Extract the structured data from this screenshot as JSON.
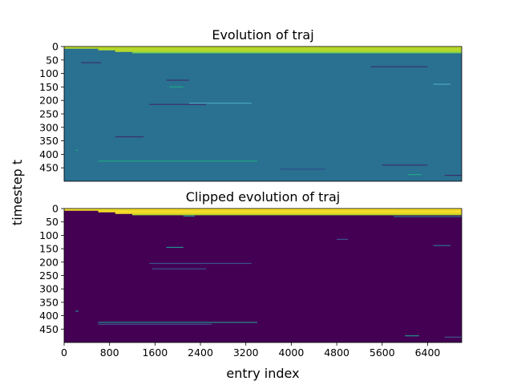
{
  "figure": {
    "ylabel": "timestep t",
    "xlabel": "entry index"
  },
  "chart_data": [
    {
      "type": "heatmap",
      "title": "Evolution of traj",
      "xlim": [
        0,
        7000
      ],
      "ylim": [
        0,
        500
      ],
      "y_inverted": true,
      "yticks": [
        0,
        50,
        100,
        150,
        200,
        250,
        300,
        350,
        400,
        450
      ],
      "ytick_labels": [
        "0",
        "50",
        "100",
        "150",
        "200",
        "250",
        "300",
        "350",
        "400",
        "450"
      ],
      "show_xticks": false,
      "colormap": "viridis",
      "colors": {
        "background": "#2a7090",
        "top_band": "#bddf26",
        "top_band_edge": "#7ad151",
        "streak_dark": "#3b2f6e",
        "streak_teal": "#21a585",
        "streak_light": "#4aa8bd",
        "streak_blue": "#2f4f8e"
      },
      "bands": [
        {
          "x0": 0,
          "x1": 7000,
          "y0": 0,
          "y1": 8,
          "color": "top_band"
        },
        {
          "x0": 600,
          "x1": 7000,
          "y0": 8,
          "y1": 14,
          "color": "top_band"
        },
        {
          "x0": 900,
          "x1": 7000,
          "y0": 14,
          "y1": 20,
          "color": "top_band"
        },
        {
          "x0": 1200,
          "x1": 7000,
          "y0": 20,
          "y1": 25,
          "color": "top_band_edge"
        }
      ],
      "streaks": [
        {
          "x0": 300,
          "x1": 650,
          "y": 60,
          "color": "streak_dark"
        },
        {
          "x0": 5400,
          "x1": 6400,
          "y": 75,
          "color": "streak_dark"
        },
        {
          "x0": 1800,
          "x1": 2200,
          "y": 125,
          "color": "streak_dark"
        },
        {
          "x0": 1850,
          "x1": 2100,
          "y": 150,
          "color": "streak_teal"
        },
        {
          "x0": 6500,
          "x1": 6800,
          "y": 140,
          "color": "streak_light"
        },
        {
          "x0": 1500,
          "x1": 2500,
          "y": 215,
          "color": "streak_dark"
        },
        {
          "x0": 2200,
          "x1": 3300,
          "y": 210,
          "color": "streak_light"
        },
        {
          "x0": 900,
          "x1": 1400,
          "y": 335,
          "color": "streak_dark"
        },
        {
          "x0": 200,
          "x1": 250,
          "y": 385,
          "color": "streak_teal"
        },
        {
          "x0": 600,
          "x1": 3400,
          "y": 425,
          "color": "streak_teal"
        },
        {
          "x0": 3800,
          "x1": 4600,
          "y": 455,
          "color": "streak_blue"
        },
        {
          "x0": 5600,
          "x1": 6400,
          "y": 440,
          "color": "streak_dark"
        },
        {
          "x0": 6050,
          "x1": 6300,
          "y": 475,
          "color": "streak_teal"
        },
        {
          "x0": 6700,
          "x1": 7000,
          "y": 478,
          "color": "streak_dark"
        }
      ]
    },
    {
      "type": "heatmap",
      "title": "Clipped evolution of traj",
      "xlim": [
        0,
        7000
      ],
      "ylim": [
        0,
        500
      ],
      "y_inverted": true,
      "xticks": [
        0,
        800,
        1600,
        2400,
        3200,
        4000,
        4800,
        5600,
        6400
      ],
      "xtick_labels": [
        "0",
        "800",
        "1600",
        "2400",
        "3200",
        "4000",
        "4800",
        "5600",
        "6400"
      ],
      "yticks": [
        0,
        50,
        100,
        150,
        200,
        250,
        300,
        350,
        400,
        450
      ],
      "ytick_labels": [
        "0",
        "50",
        "100",
        "150",
        "200",
        "250",
        "300",
        "350",
        "400",
        "450"
      ],
      "colormap": "viridis",
      "colors": {
        "background": "#440154",
        "top_band": "#fde725",
        "top_band_edge": "#b5de2b",
        "streak_teal": "#21918c",
        "streak_light": "#2c728e",
        "streak_blue": "#3b528b"
      },
      "bands": [
        {
          "x0": 0,
          "x1": 7000,
          "y0": 0,
          "y1": 8,
          "color": "top_band"
        },
        {
          "x0": 600,
          "x1": 7000,
          "y0": 8,
          "y1": 14,
          "color": "top_band"
        },
        {
          "x0": 900,
          "x1": 7000,
          "y0": 14,
          "y1": 20,
          "color": "top_band"
        },
        {
          "x0": 1200,
          "x1": 7000,
          "y0": 20,
          "y1": 25,
          "color": "top_band_edge"
        }
      ],
      "streaks": [
        {
          "x0": 5800,
          "x1": 7000,
          "y": 30,
          "color": "streak_light"
        },
        {
          "x0": 2100,
          "x1": 2300,
          "y": 28,
          "color": "streak_teal"
        },
        {
          "x0": 6500,
          "x1": 6800,
          "y": 138,
          "color": "streak_light"
        },
        {
          "x0": 1800,
          "x1": 2100,
          "y": 145,
          "color": "streak_teal"
        },
        {
          "x0": 4800,
          "x1": 5000,
          "y": 115,
          "color": "streak_blue"
        },
        {
          "x0": 1500,
          "x1": 3300,
          "y": 205,
          "color": "streak_blue"
        },
        {
          "x0": 1550,
          "x1": 2500,
          "y": 225,
          "color": "streak_blue"
        },
        {
          "x0": 200,
          "x1": 250,
          "y": 383,
          "color": "streak_teal"
        },
        {
          "x0": 600,
          "x1": 3400,
          "y": 425,
          "color": "streak_teal"
        },
        {
          "x0": 600,
          "x1": 2600,
          "y": 432,
          "color": "streak_blue"
        },
        {
          "x0": 6000,
          "x1": 6250,
          "y": 475,
          "color": "streak_teal"
        },
        {
          "x0": 6700,
          "x1": 7000,
          "y": 480,
          "color": "streak_blue"
        }
      ]
    }
  ]
}
